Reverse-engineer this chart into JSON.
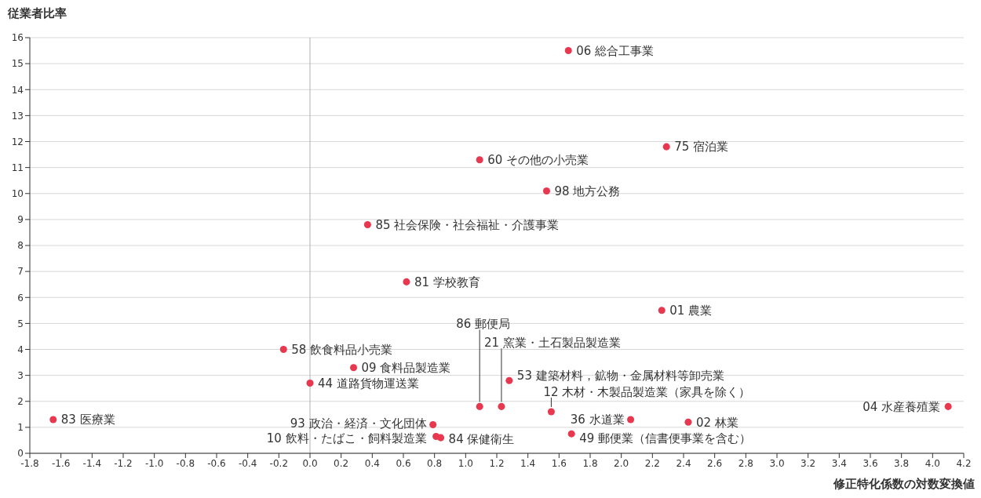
{
  "chart_data": {
    "type": "scatter",
    "xlabel": "修正特化係数の対数変換値",
    "ylabel": "従業者比率",
    "x": [
      1.66,
      2.29,
      1.09,
      1.52,
      0.37,
      0.62,
      2.26,
      -0.17,
      0.28,
      1.28,
      0.0,
      1.09,
      1.23,
      4.1,
      1.55,
      -1.65,
      2.06,
      2.43,
      0.79,
      0.81,
      0.84,
      1.68
    ],
    "series": [
      {
        "color": "#e8384f",
        "values": [
          15.5,
          11.8,
          11.3,
          10.1,
          8.8,
          6.6,
          5.5,
          4.0,
          3.3,
          2.8,
          2.7,
          1.8,
          1.8,
          1.8,
          1.6,
          1.3,
          1.3,
          1.2,
          1.1,
          0.65,
          0.6,
          0.75
        ]
      }
    ],
    "annotations": [
      {
        "text": "06 総合工事業",
        "x": 1.66,
        "y": 15.5
      },
      {
        "text": "75 宿泊業",
        "x": 2.29,
        "y": 11.8
      },
      {
        "text": "60 その他の小売業",
        "x": 1.09,
        "y": 11.3
      },
      {
        "text": "98 地方公務",
        "x": 1.52,
        "y": 10.1
      },
      {
        "text": "85 社会保険・社会福祉・介護事業",
        "x": 0.37,
        "y": 8.8
      },
      {
        "text": "81 学校教育",
        "x": 0.62,
        "y": 6.6
      },
      {
        "text": "01 農業",
        "x": 2.26,
        "y": 5.5
      },
      {
        "text": "58 飲食料品小売業",
        "x": -0.17,
        "y": 4.0
      },
      {
        "text": "09 食料品製造業",
        "x": 0.28,
        "y": 3.3
      },
      {
        "text": "53 建築材料，鉱物・金属材料等卸売業",
        "x": 1.28,
        "y": 2.8
      },
      {
        "text": "44 道路貨物運送業",
        "x": 0.0,
        "y": 2.7
      },
      {
        "text": "86 郵便局",
        "x": 1.09,
        "y": 1.8
      },
      {
        "text": "21 窯業・土石製品製造業",
        "x": 1.23,
        "y": 1.8
      },
      {
        "text": "04 水産養殖業",
        "x": 4.1,
        "y": 1.8
      },
      {
        "text": "12 木材・木製品製造業（家具を除く）",
        "x": 1.55,
        "y": 1.6
      },
      {
        "text": "83 医療業",
        "x": -1.65,
        "y": 1.3
      },
      {
        "text": "36 水道業",
        "x": 2.06,
        "y": 1.3
      },
      {
        "text": "02 林業",
        "x": 2.43,
        "y": 1.2
      },
      {
        "text": "93 政治・経済・文化団体",
        "x": 0.79,
        "y": 1.1
      },
      {
        "text": "10 飲料・たばこ・飼料製造業",
        "x": 0.81,
        "y": 0.65
      },
      {
        "text": "84 保健衛生",
        "x": 0.84,
        "y": 0.6
      },
      {
        "text": "49 郵便業（信書便事業を含む）",
        "x": 1.68,
        "y": 0.75
      }
    ],
    "xlim": [
      -1.8,
      4.2
    ],
    "xticks": [
      -1.8,
      -1.6,
      -1.4,
      -1.2,
      {
        "value": -1.0,
        "label": "-1.0"
      },
      -0.8,
      -0.6,
      -0.4,
      -0.2,
      {
        "value": 0,
        "label": "0.0"
      },
      0.2,
      0.4,
      0.6,
      0.8,
      {
        "value": 1.0,
        "label": "1.0"
      },
      1.2,
      1.4,
      1.6,
      1.8,
      {
        "value": 2.0,
        "label": "2.0"
      },
      2.2,
      2.4,
      2.6,
      2.8,
      {
        "value": 3.0,
        "label": "3.0"
      },
      3.2,
      3.4,
      3.6,
      3.8,
      {
        "value": 4.0,
        "label": "4.0"
      },
      4.2
    ],
    "ylim": [
      0,
      16
    ],
    "yticks": [
      0,
      1,
      2,
      3,
      4,
      5,
      6,
      7,
      8,
      9,
      10,
      11,
      12,
      13,
      14,
      15,
      16
    ],
    "grid": "y",
    "marker": "circle",
    "ref_lines": [
      {
        "axis": "x",
        "value": 0,
        "color": "#b0b0b0"
      }
    ]
  }
}
